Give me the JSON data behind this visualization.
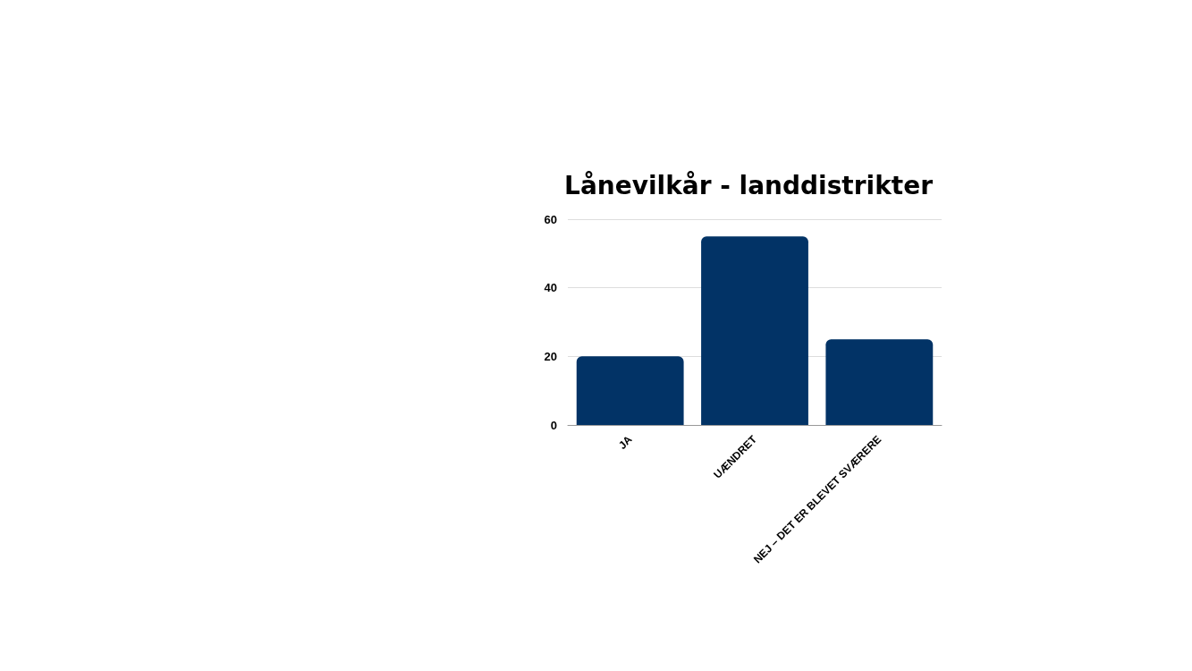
{
  "chart_data": {
    "type": "bar",
    "title": "Lånevilkår - landdistrikter",
    "categories": [
      "JA",
      "UÆNDRET",
      "NEJ – DET ER BLEVET SVÆRERE"
    ],
    "values": [
      20,
      55,
      25
    ],
    "color": "#023366",
    "ylim": [
      0,
      60
    ],
    "yticks": [
      0,
      20,
      40,
      60
    ],
    "grid": "y"
  }
}
